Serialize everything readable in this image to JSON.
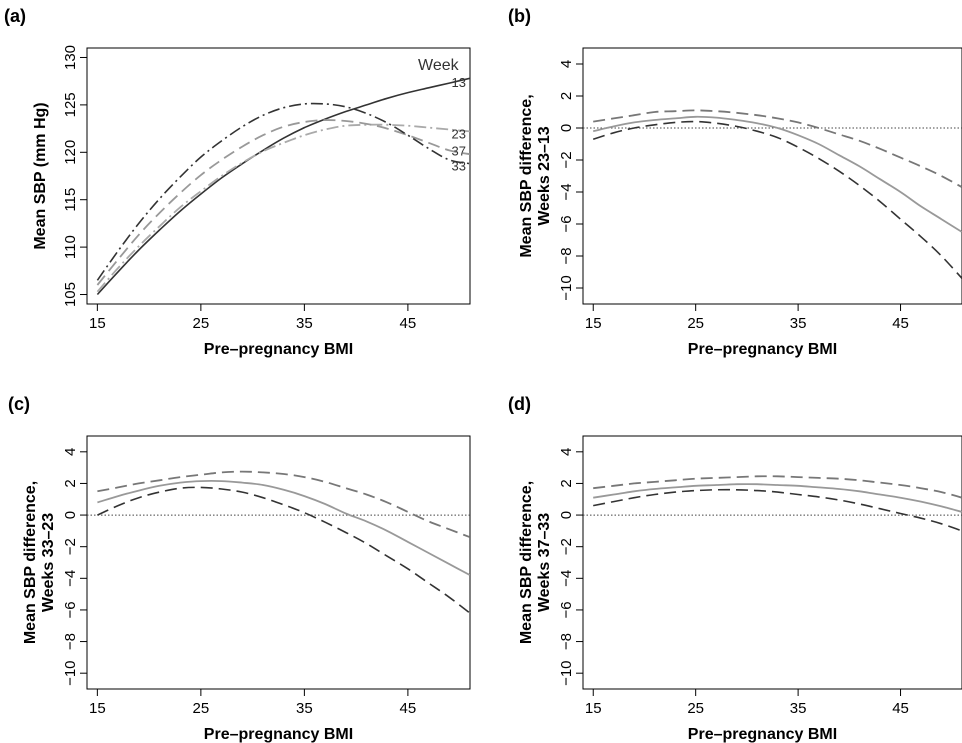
{
  "panels": [
    {
      "label": "(a)"
    },
    {
      "label": "(b)"
    },
    {
      "label": "(c)"
    },
    {
      "label": "(d)"
    }
  ],
  "colors": {
    "dark": "#333333",
    "mid": "#777777",
    "light": "#999999",
    "lighter": "#aaaaaa",
    "zero": "#444444"
  },
  "chart_data": [
    {
      "type": "line",
      "panel": "(a)",
      "xlabel": "Pre–pregnancy BMI",
      "ylabel": "Mean SBP (mm Hg)",
      "xlim": [
        14,
        51
      ],
      "ylim": [
        104,
        131
      ],
      "xticks": [
        "15",
        "25",
        "35",
        "45"
      ],
      "yticks": [
        "105",
        "110",
        "115",
        "120",
        "125",
        "130"
      ],
      "legend_title": "Week",
      "x": [
        15,
        17,
        19,
        21,
        23,
        25,
        27,
        29,
        31,
        33,
        35,
        37,
        39,
        41,
        43,
        45,
        47,
        49,
        51
      ],
      "series": [
        {
          "name": "13",
          "style": "solid-dark",
          "values": [
            105.0,
            107.4,
            109.7,
            111.8,
            113.8,
            115.6,
            117.3,
            118.8,
            120.2,
            121.5,
            122.6,
            123.5,
            124.3,
            125.0,
            125.7,
            126.3,
            126.8,
            127.3,
            127.8
          ]
        },
        {
          "name": "23",
          "style": "dashdot-light",
          "values": [
            105.3,
            107.8,
            110.1,
            112.2,
            114.2,
            115.9,
            117.5,
            118.9,
            120.1,
            121.0,
            121.8,
            122.4,
            122.8,
            122.9,
            122.9,
            122.8,
            122.6,
            122.4,
            122.2
          ]
        },
        {
          "name": "37",
          "style": "dashed-mid",
          "values": [
            106.0,
            108.7,
            111.3,
            113.6,
            115.7,
            117.6,
            119.2,
            120.6,
            121.8,
            122.7,
            123.2,
            123.4,
            123.3,
            123.0,
            122.5,
            121.8,
            121.0,
            120.2,
            119.8
          ]
        },
        {
          "name": "33",
          "style": "dashdot-dark",
          "values": [
            106.5,
            109.6,
            112.5,
            115.1,
            117.4,
            119.5,
            121.2,
            122.7,
            123.9,
            124.7,
            125.1,
            125.1,
            124.8,
            124.1,
            123.1,
            121.8,
            120.4,
            119.2,
            118.8
          ]
        }
      ]
    },
    {
      "type": "line",
      "panel": "(b)",
      "xlabel": "Pre–pregnancy BMI",
      "ylabel": "Mean SBP difference,",
      "ylabel2": "Weeks 23–13",
      "xlim": [
        14,
        51
      ],
      "ylim": [
        -11,
        5
      ],
      "xticks": [
        "15",
        "25",
        "35",
        "45"
      ],
      "yticks": [
        "−10",
        "−8",
        "−6",
        "−4",
        "−2",
        "0",
        "2",
        "4"
      ],
      "x": [
        15,
        17,
        19,
        21,
        23,
        25,
        27,
        29,
        31,
        33,
        35,
        37,
        39,
        41,
        43,
        45,
        47,
        49,
        51
      ],
      "series": [
        {
          "style": "dashed-upper",
          "values": [
            0.4,
            0.6,
            0.8,
            1.0,
            1.05,
            1.1,
            1.05,
            0.95,
            0.8,
            0.6,
            0.35,
            0.0,
            -0.4,
            -0.8,
            -1.3,
            -1.85,
            -2.4,
            -3.0,
            -3.7
          ]
        },
        {
          "style": "solid-est",
          "values": [
            -0.2,
            0.1,
            0.35,
            0.5,
            0.6,
            0.7,
            0.65,
            0.5,
            0.3,
            0.0,
            -0.45,
            -1.0,
            -1.7,
            -2.4,
            -3.2,
            -4.0,
            -4.9,
            -5.7,
            -6.5
          ]
        },
        {
          "style": "dashed-lower",
          "values": [
            -0.7,
            -0.3,
            0.0,
            0.2,
            0.35,
            0.4,
            0.3,
            0.1,
            -0.2,
            -0.6,
            -1.2,
            -1.9,
            -2.7,
            -3.6,
            -4.6,
            -5.7,
            -6.8,
            -8.0,
            -9.4
          ]
        }
      ]
    },
    {
      "type": "line",
      "panel": "(c)",
      "xlabel": "Pre–pregnancy BMI",
      "ylabel": "Mean SBP difference,",
      "ylabel2": "Weeks 33–23",
      "xlim": [
        14,
        51
      ],
      "ylim": [
        -11,
        5
      ],
      "xticks": [
        "15",
        "25",
        "35",
        "45"
      ],
      "yticks": [
        "−10",
        "−8",
        "−6",
        "−4",
        "−2",
        "0",
        "2",
        "4"
      ],
      "x": [
        15,
        17,
        19,
        21,
        23,
        25,
        27,
        29,
        31,
        33,
        35,
        37,
        39,
        41,
        43,
        45,
        47,
        49,
        51
      ],
      "series": [
        {
          "style": "dashed-upper",
          "values": [
            1.5,
            1.75,
            2.0,
            2.2,
            2.4,
            2.55,
            2.7,
            2.75,
            2.7,
            2.6,
            2.4,
            2.1,
            1.7,
            1.3,
            0.8,
            0.2,
            -0.4,
            -0.9,
            -1.4
          ]
        },
        {
          "style": "solid-est",
          "values": [
            0.8,
            1.2,
            1.55,
            1.85,
            2.05,
            2.15,
            2.15,
            2.05,
            1.9,
            1.6,
            1.2,
            0.7,
            0.1,
            -0.4,
            -1.0,
            -1.7,
            -2.4,
            -3.1,
            -3.8
          ]
        },
        {
          "style": "dashed-lower",
          "values": [
            0.0,
            0.6,
            1.1,
            1.45,
            1.7,
            1.75,
            1.65,
            1.45,
            1.1,
            0.65,
            0.15,
            -0.45,
            -1.1,
            -1.8,
            -2.6,
            -3.4,
            -4.3,
            -5.2,
            -6.2
          ]
        }
      ]
    },
    {
      "type": "line",
      "panel": "(d)",
      "xlabel": "Pre–pregnancy BMI",
      "ylabel": "Mean SBP difference,",
      "ylabel2": "Weeks 37–33",
      "xlim": [
        14,
        51
      ],
      "ylim": [
        -11,
        5
      ],
      "xticks": [
        "15",
        "25",
        "35",
        "45"
      ],
      "yticks": [
        "−10",
        "−8",
        "−6",
        "−4",
        "−2",
        "0",
        "2",
        "4"
      ],
      "x": [
        15,
        17,
        19,
        21,
        23,
        25,
        27,
        29,
        31,
        33,
        35,
        37,
        39,
        41,
        43,
        45,
        47,
        49,
        51
      ],
      "series": [
        {
          "style": "dashed-upper",
          "values": [
            1.7,
            1.85,
            2.0,
            2.1,
            2.2,
            2.3,
            2.35,
            2.4,
            2.45,
            2.45,
            2.4,
            2.35,
            2.3,
            2.2,
            2.05,
            1.9,
            1.7,
            1.45,
            1.1
          ]
        },
        {
          "style": "solid-est",
          "values": [
            1.1,
            1.3,
            1.5,
            1.65,
            1.75,
            1.85,
            1.9,
            1.95,
            1.95,
            1.9,
            1.85,
            1.75,
            1.65,
            1.5,
            1.3,
            1.1,
            0.85,
            0.55,
            0.2
          ]
        },
        {
          "style": "dashed-lower",
          "values": [
            0.6,
            0.85,
            1.1,
            1.3,
            1.45,
            1.55,
            1.6,
            1.6,
            1.55,
            1.45,
            1.3,
            1.15,
            0.95,
            0.7,
            0.4,
            0.1,
            -0.2,
            -0.55,
            -1.0
          ]
        }
      ]
    }
  ]
}
